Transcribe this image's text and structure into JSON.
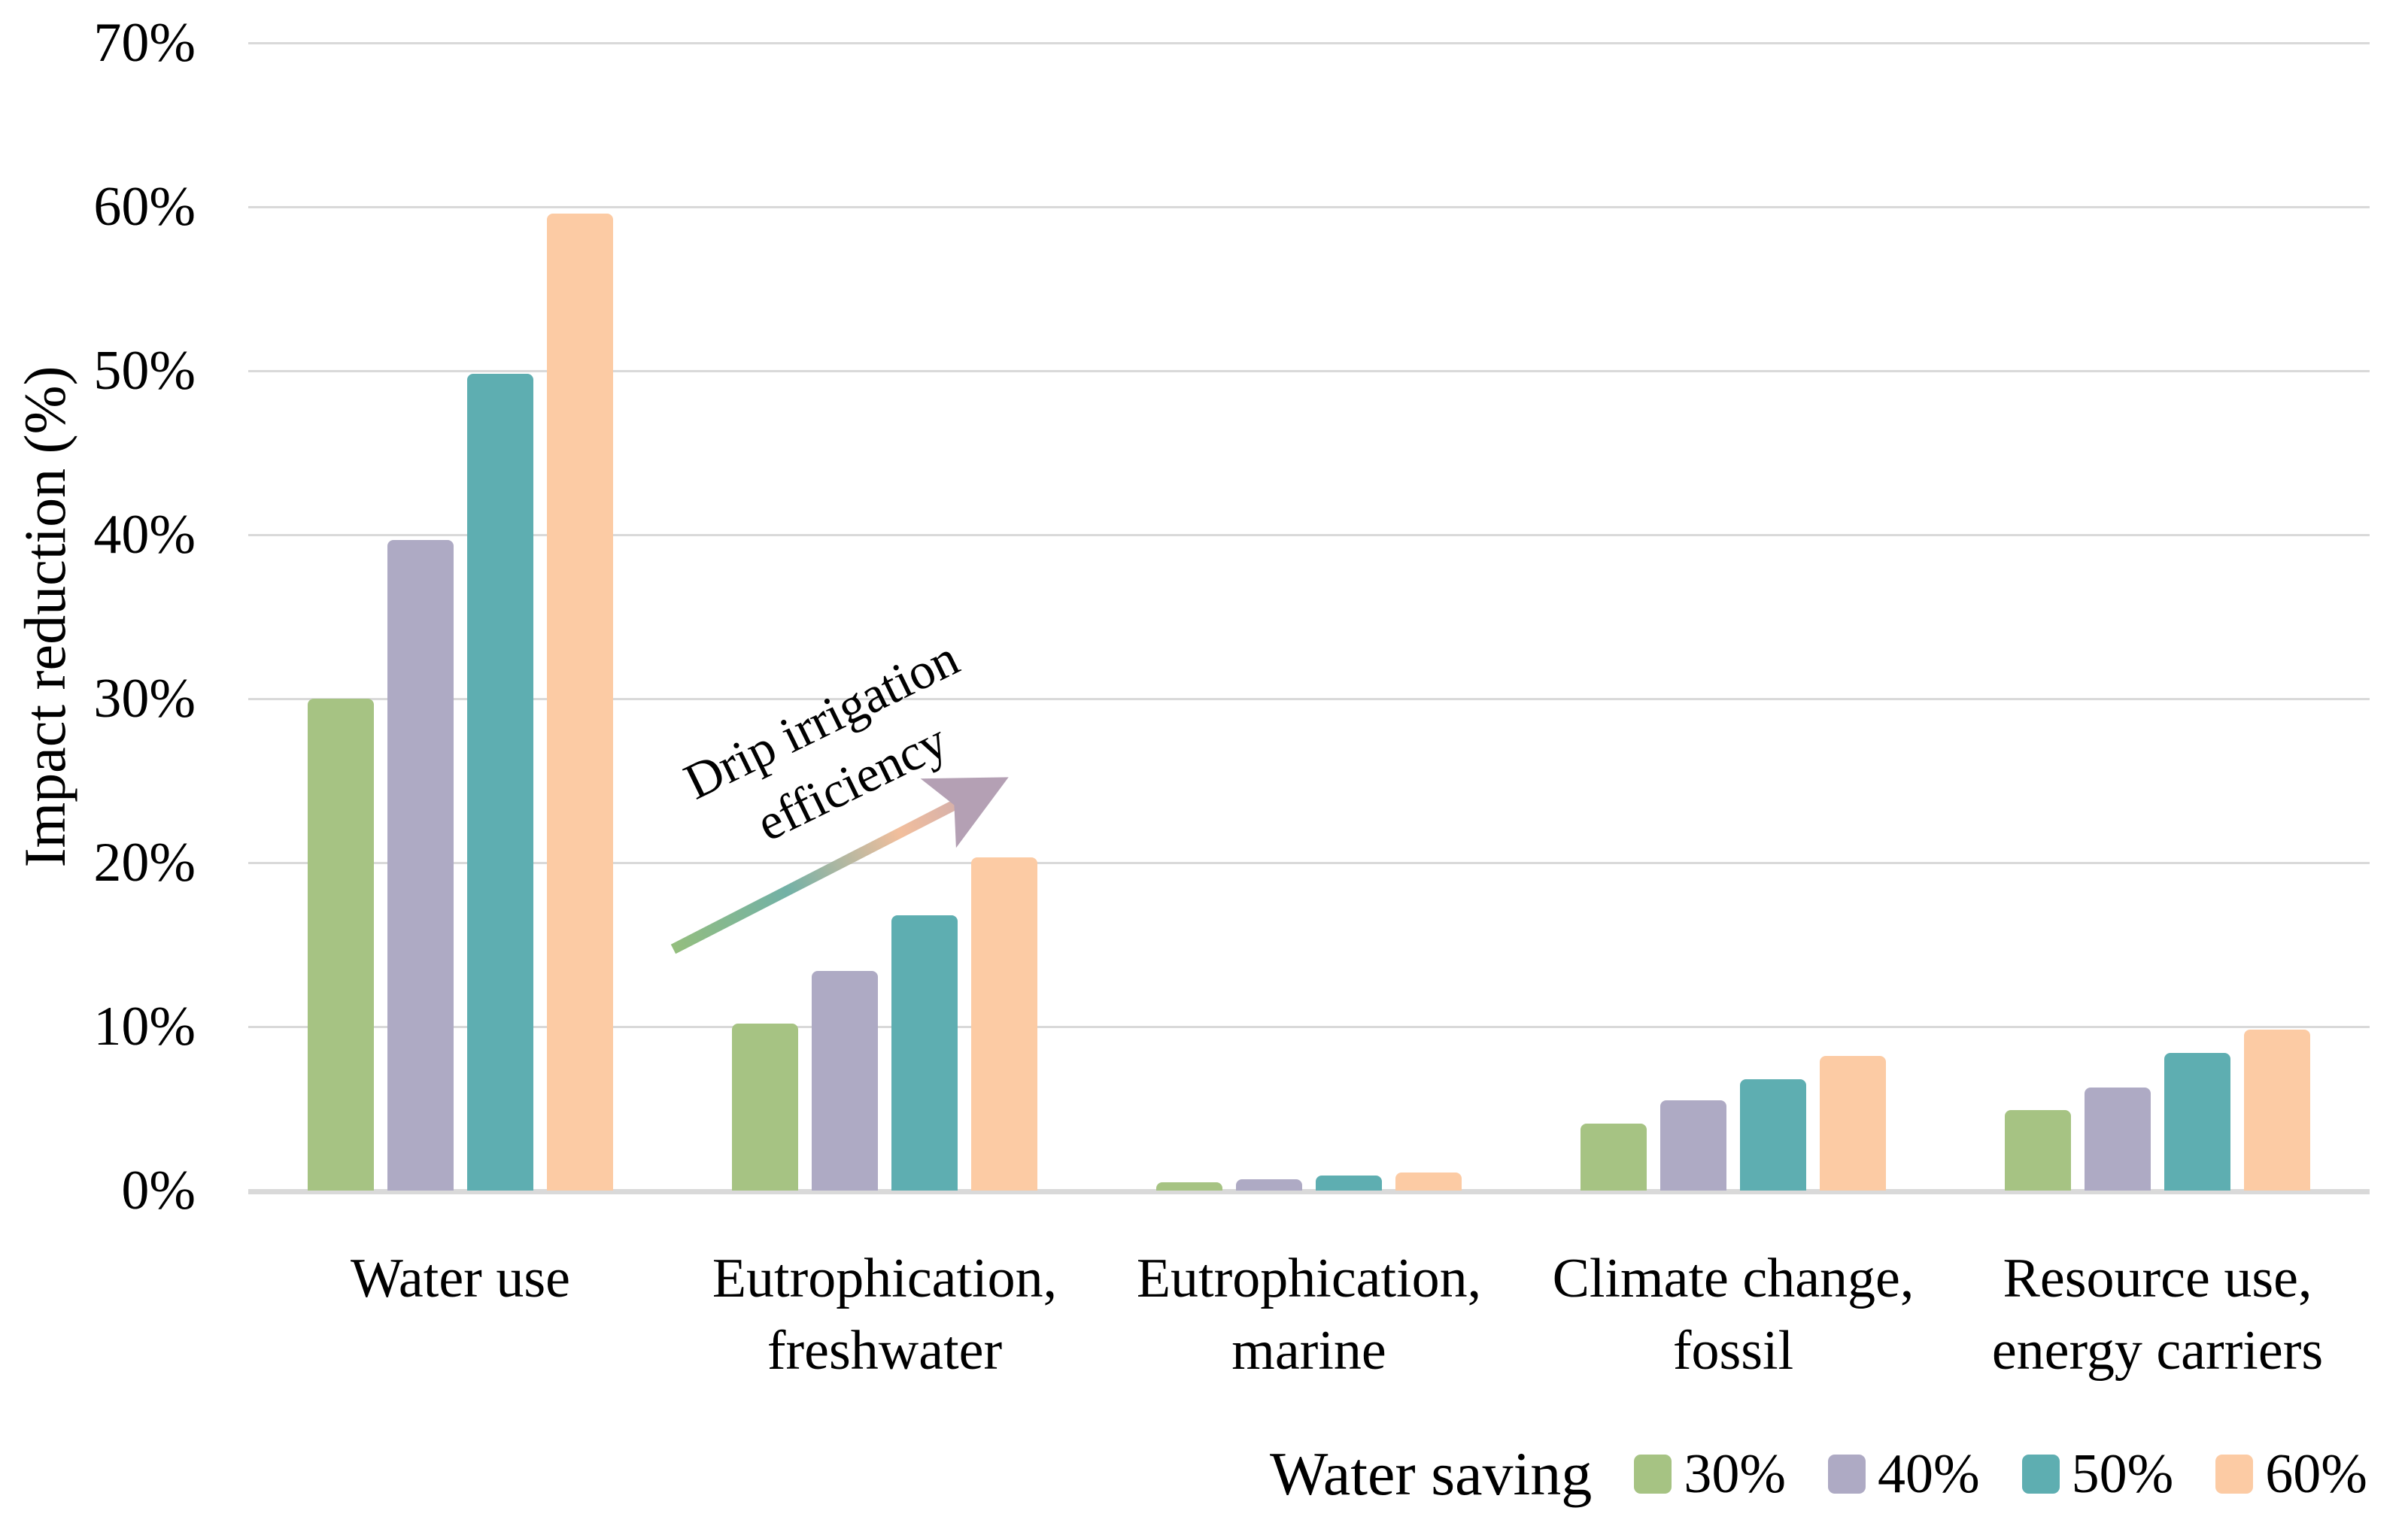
{
  "figure": {
    "background": "#FFFFFF",
    "grid_color": "#D9D9D9",
    "axis_line_color": "#D9D9D9",
    "text_color": "#000000",
    "y_axis": {
      "title": "Impact reduction (%)",
      "tick_labels": [
        "0%",
        "10%",
        "20%",
        "30%",
        "40%",
        "50%",
        "60%",
        "70%"
      ],
      "min": 0,
      "max": 70,
      "step": 10
    },
    "annotation": {
      "lines": [
        "Drip irrigation",
        "efficiency"
      ],
      "text": "Drip irrigation efficiency",
      "arrow_gradient": [
        "#94BE7E",
        "#72B1A6",
        "#F2BE9C",
        "#BBA3B8"
      ],
      "arrowhead_color": "#B4A0B4"
    },
    "legend": {
      "title": "Water saving",
      "items": [
        {
          "label": "30%",
          "color": "#A6C383"
        },
        {
          "label": "40%",
          "color": "#AEAAC4"
        },
        {
          "label": "50%",
          "color": "#5EAEB1"
        },
        {
          "label": "60%",
          "color": "#FCCBA4"
        }
      ]
    }
  },
  "chart_data": {
    "type": "bar",
    "title": "",
    "xlabel": "",
    "ylabel": "Impact reduction (%)",
    "ylim": [
      0,
      70
    ],
    "y_tick_format": "percent",
    "grid": true,
    "legend_position": "bottom-right",
    "legend_title": "Water saving",
    "categories": [
      "Water use",
      "Eutrophication, freshwater",
      "Eutrophication, marine",
      "Climate change, fossil",
      "Resource use, energy carriers"
    ],
    "category_label_lines": [
      [
        "Water use"
      ],
      [
        "Eutrophication,",
        "freshwater"
      ],
      [
        "Eutrophication,",
        "marine"
      ],
      [
        "Climate change,",
        "fossil"
      ],
      [
        "Resource use,",
        "energy carriers"
      ]
    ],
    "series": [
      {
        "name": "30%",
        "color": "#A6C383",
        "values": [
          30.0,
          10.2,
          0.5,
          4.1,
          4.9
        ]
      },
      {
        "name": "40%",
        "color": "#AEAAC4",
        "values": [
          39.7,
          13.4,
          0.7,
          5.5,
          6.3
        ]
      },
      {
        "name": "50%",
        "color": "#5EAEB1",
        "values": [
          49.8,
          16.8,
          0.9,
          6.8,
          8.4
        ]
      },
      {
        "name": "60%",
        "color": "#FCCBA4",
        "values": [
          59.6,
          20.3,
          1.1,
          8.2,
          9.8
        ]
      }
    ],
    "annotation": "Drip irrigation efficiency"
  }
}
